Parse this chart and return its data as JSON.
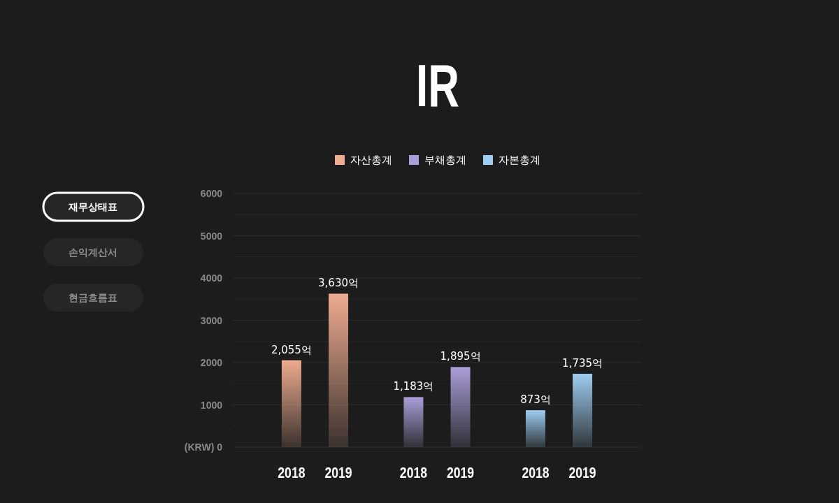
{
  "chart_data": {
    "type": "bar",
    "title": "IR",
    "categories": [
      "2018",
      "2019",
      "2018",
      "2019",
      "2018",
      "2019"
    ],
    "series": [
      {
        "name": "자산총계",
        "color": "#eeac90",
        "values": [
          2055,
          3630,
          null,
          null,
          null,
          null
        ],
        "value_labels": [
          "2,055억",
          "3,630억",
          null,
          null,
          null,
          null
        ]
      },
      {
        "name": "부채총계",
        "color": "#ab9ed9",
        "values": [
          null,
          null,
          1183,
          1895,
          null,
          null
        ],
        "value_labels": [
          null,
          null,
          "1,183억",
          "1,895억",
          null,
          null
        ]
      },
      {
        "name": "자본총계",
        "color": "#9fcdf2",
        "values": [
          null,
          null,
          null,
          null,
          873,
          1735
        ],
        "value_labels": [
          null,
          null,
          null,
          null,
          "873억",
          "1,735억"
        ]
      }
    ],
    "ylim": [
      0,
      6000
    ],
    "yticks": [
      {
        "value": 0,
        "label": "(KRW) 0"
      },
      {
        "value": 500,
        "label": null
      },
      1000,
      {
        "value": 1500,
        "label": null
      },
      2000,
      {
        "value": 2500,
        "label": null
      },
      3000,
      {
        "value": 3500,
        "label": null
      },
      4000,
      {
        "value": 4500,
        "label": null
      },
      5000,
      {
        "value": 5500,
        "label": null
      },
      6000
    ],
    "grid": "y",
    "legend": "top",
    "annotations": [
      "재무상태표",
      "손익계산서",
      "현금흐름표"
    ]
  }
}
